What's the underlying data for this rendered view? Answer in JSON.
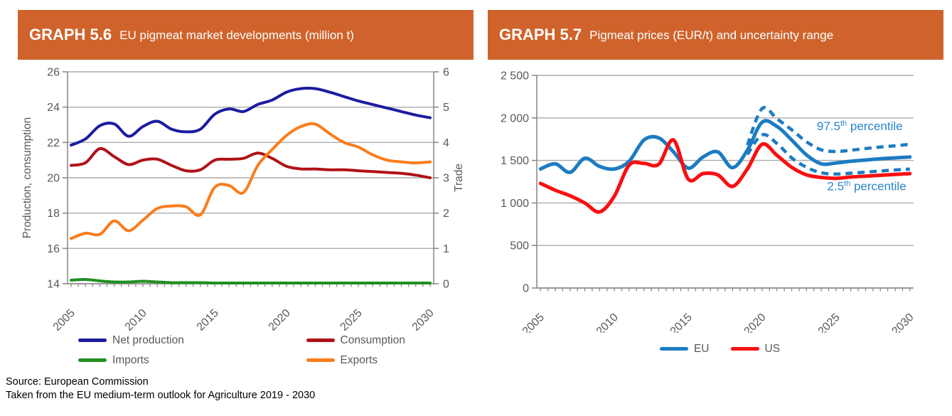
{
  "panels": {
    "left": {
      "header": {
        "code": "GRAPH 5.6",
        "title": "EU pigmeat market developments (million t)"
      }
    },
    "right": {
      "header": {
        "code": "GRAPH 5.7",
        "title": "Pigmeat prices (EUR/t) and uncertainty range"
      }
    }
  },
  "footer": {
    "line1": "Source: European Commission",
    "line2": "Taken from the EU medium-term outlook for Agriculture 2019 - 2030"
  },
  "colors": {
    "header_bg": "#D0632B",
    "header_text": "#FFFFFF",
    "grid": "#ABABAB",
    "axis": "#8A8A8A",
    "tick_text": "#595959",
    "annotation_blue": "#2A84CA"
  },
  "chart_data": [
    {
      "type": "line",
      "title": "EU pigmeat market developments (million t)",
      "x": [
        2005,
        2006,
        2007,
        2008,
        2009,
        2010,
        2011,
        2012,
        2013,
        2014,
        2015,
        2016,
        2017,
        2018,
        2019,
        2020,
        2021,
        2022,
        2023,
        2024,
        2025,
        2026,
        2027,
        2028,
        2029,
        2030
      ],
      "x_ticks": [
        2005,
        2010,
        2015,
        2020,
        2025,
        2030
      ],
      "x_tick_labels": [
        "2005",
        "2010",
        "2015",
        "2020",
        "2025",
        "2030"
      ],
      "grid": true,
      "legend_position": "bottom",
      "y_left": {
        "title": "Production, consumption",
        "min": 14,
        "max": 26,
        "ticks": [
          14,
          16,
          18,
          20,
          22,
          24,
          26
        ],
        "tick_labels": [
          "14",
          "16",
          "18",
          "20",
          "22",
          "24",
          "26"
        ]
      },
      "y_right": {
        "title": "Trade",
        "min": 0,
        "max": 6,
        "ticks": [
          0,
          1,
          2,
          3,
          4,
          5,
          6
        ],
        "tick_labels": [
          "0",
          "1",
          "2",
          "3",
          "4",
          "5",
          "6"
        ]
      },
      "series": [
        {
          "name": "Net production",
          "color": "#1C1CA0",
          "axis": "left",
          "width": 4,
          "values": [
            21.85,
            22.2,
            22.95,
            23.05,
            22.35,
            22.9,
            23.2,
            22.75,
            22.6,
            22.75,
            23.6,
            23.9,
            23.75,
            24.15,
            24.4,
            24.85,
            25.05,
            25.05,
            24.85,
            24.6,
            24.35,
            24.15,
            23.95,
            23.75,
            23.55,
            23.4
          ]
        },
        {
          "name": "Consumption",
          "color": "#B01217",
          "axis": "left",
          "width": 4,
          "values": [
            20.7,
            20.85,
            21.65,
            21.2,
            20.75,
            21.0,
            21.05,
            20.7,
            20.4,
            20.45,
            21.0,
            21.05,
            21.1,
            21.4,
            21.1,
            20.65,
            20.5,
            20.5,
            20.45,
            20.45,
            20.4,
            20.35,
            20.3,
            20.25,
            20.15,
            20.0
          ]
        },
        {
          "name": "Imports",
          "color": "#1F9021",
          "axis": "right",
          "width": 4,
          "values": [
            0.1,
            0.12,
            0.08,
            0.05,
            0.05,
            0.07,
            0.05,
            0.03,
            0.03,
            0.03,
            0.02,
            0.02,
            0.02,
            0.02,
            0.02,
            0.02,
            0.02,
            0.02,
            0.02,
            0.02,
            0.02,
            0.02,
            0.02,
            0.02,
            0.02,
            0.02
          ]
        },
        {
          "name": "Exports",
          "color": "#F97D1C",
          "axis": "right",
          "width": 4,
          "values": [
            1.28,
            1.43,
            1.4,
            1.78,
            1.5,
            1.8,
            2.13,
            2.2,
            2.18,
            1.95,
            2.73,
            2.78,
            2.58,
            3.35,
            3.8,
            4.2,
            4.45,
            4.52,
            4.25,
            4.0,
            3.87,
            3.65,
            3.5,
            3.45,
            3.42,
            3.45
          ]
        }
      ]
    },
    {
      "type": "line",
      "title": "Pigmeat prices (EUR/t) and uncertainty range",
      "x": [
        2005,
        2006,
        2007,
        2008,
        2009,
        2010,
        2011,
        2012,
        2013,
        2014,
        2015,
        2016,
        2017,
        2018,
        2019,
        2020,
        2021,
        2022,
        2023,
        2024,
        2025,
        2026,
        2027,
        2028,
        2029,
        2030
      ],
      "x_ticks": [
        2005,
        2010,
        2015,
        2020,
        2025,
        2030
      ],
      "x_tick_labels": [
        "2005",
        "2010",
        "2015",
        "2020",
        "2025",
        "2030"
      ],
      "grid": true,
      "legend_position": "bottom",
      "y_left": {
        "title": "",
        "min": 0,
        "max": 2500,
        "ticks": [
          0,
          500,
          1000,
          1500,
          2000,
          2500
        ],
        "tick_labels": [
          "0",
          "500",
          "1 000",
          "1 500",
          "2 000",
          "2 500"
        ]
      },
      "series": [
        {
          "name": "EU",
          "color": "#1C7CC2",
          "axis": "left",
          "width": 5,
          "values": [
            1400,
            1460,
            1360,
            1525,
            1430,
            1400,
            1490,
            1740,
            1765,
            1600,
            1410,
            1540,
            1600,
            1415,
            1620,
            1950,
            1900,
            1740,
            1565,
            1460,
            1470,
            1490,
            1505,
            1520,
            1530,
            1540
          ]
        },
        {
          "name": "US",
          "color": "#FA0E10",
          "axis": "left",
          "width": 5,
          "values": [
            1230,
            1150,
            1085,
            1000,
            895,
            1080,
            1445,
            1465,
            1455,
            1740,
            1280,
            1345,
            1330,
            1195,
            1400,
            1690,
            1560,
            1420,
            1330,
            1300,
            1290,
            1305,
            1315,
            1325,
            1335,
            1345
          ]
        },
        {
          "name": "97.5th percentile",
          "color": "#1C7CC2",
          "axis": "left",
          "width": 4.5,
          "dash": "10 7",
          "in_legend": false,
          "values": [
            null,
            null,
            null,
            null,
            null,
            null,
            null,
            null,
            null,
            null,
            null,
            null,
            null,
            null,
            1680,
            2110,
            1990,
            1860,
            1720,
            1625,
            1605,
            1620,
            1640,
            1658,
            1672,
            1690
          ]
        },
        {
          "name": "2.5th percentile",
          "color": "#1C7CC2",
          "axis": "left",
          "width": 4.5,
          "dash": "10 7",
          "in_legend": false,
          "values": [
            null,
            null,
            null,
            null,
            null,
            null,
            null,
            null,
            null,
            null,
            null,
            null,
            null,
            null,
            1570,
            1800,
            1700,
            1530,
            1420,
            1355,
            1340,
            1350,
            1362,
            1375,
            1388,
            1398
          ]
        }
      ],
      "annotations": [
        {
          "prefix": "97.5",
          "sup": "th",
          "suffix": " percentile",
          "x": 2023.7,
          "y": 1855,
          "color": "#2A84CA"
        },
        {
          "prefix": "2.5",
          "sup": "th",
          "suffix": " percentile",
          "x": 2024.4,
          "y": 1150,
          "color": "#2A84CA"
        }
      ]
    }
  ]
}
